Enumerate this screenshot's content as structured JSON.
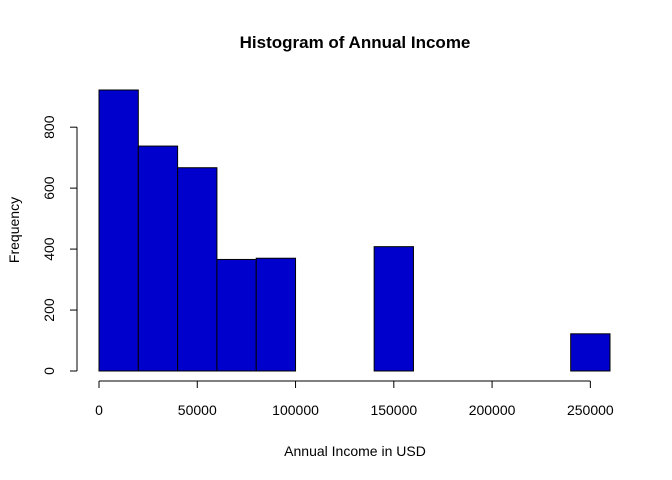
{
  "chart_data": {
    "type": "bar",
    "title": "Histogram of Annual Income",
    "xlabel": "Annual Income in USD",
    "ylabel": "Frequency",
    "bins": [
      {
        "start": 0,
        "end": 20000,
        "count": 922
      },
      {
        "start": 20000,
        "end": 40000,
        "count": 738
      },
      {
        "start": 40000,
        "end": 60000,
        "count": 667
      },
      {
        "start": 60000,
        "end": 80000,
        "count": 366
      },
      {
        "start": 80000,
        "end": 100000,
        "count": 370
      },
      {
        "start": 100000,
        "end": 120000,
        "count": 0
      },
      {
        "start": 120000,
        "end": 140000,
        "count": 0
      },
      {
        "start": 140000,
        "end": 160000,
        "count": 408
      },
      {
        "start": 160000,
        "end": 180000,
        "count": 0
      },
      {
        "start": 180000,
        "end": 200000,
        "count": 0
      },
      {
        "start": 200000,
        "end": 220000,
        "count": 0
      },
      {
        "start": 220000,
        "end": 240000,
        "count": 0
      },
      {
        "start": 240000,
        "end": 260000,
        "count": 122
      }
    ],
    "xlim": [
      0,
      260000
    ],
    "ylim": [
      0,
      922
    ],
    "xticks": [
      0,
      50000,
      100000,
      150000,
      200000,
      250000
    ],
    "xtick_labels": [
      "0",
      "50000",
      "100000",
      "150000",
      "200000",
      "250000"
    ],
    "yticks": [
      0,
      200,
      400,
      600,
      800
    ],
    "ytick_labels": [
      "0",
      "200",
      "400",
      "600",
      "800"
    ],
    "bar_color": "#0000CD",
    "grid": false,
    "legend": "none"
  }
}
